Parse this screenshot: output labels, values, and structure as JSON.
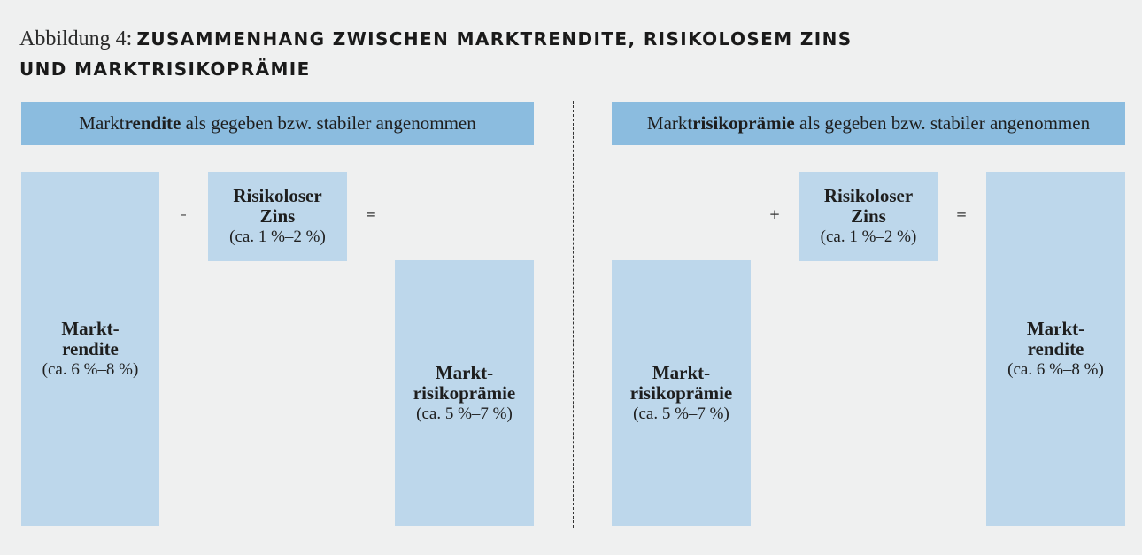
{
  "figure": {
    "prefix": "Abbildung 4:",
    "title_line1": "ZUSAMMENHANG ZWISCHEN MARKTRENDITE, RISIKOLOSEM ZINS",
    "title_line2": "UND MARKTRISIKOPRÄMIE"
  },
  "left": {
    "header_pre": "Markt",
    "header_bold": "rendite",
    "header_post": " als gegeben bzw. stabiler angenommen",
    "box_market_return": {
      "line1": "Markt-",
      "line2": "rendite",
      "range": "(ca. 6 %–8 %)"
    },
    "op_minus": "–",
    "box_riskfree": {
      "line1": "Risikoloser",
      "line2": "Zins",
      "range": "(ca. 1 %–2 %)"
    },
    "op_equals": "=",
    "box_risk_premium": {
      "line1": "Markt-",
      "line2": "risikoprämie",
      "range": "(ca. 5 %–7 %)"
    }
  },
  "right": {
    "header_pre": "Markt",
    "header_bold": "risikoprämie",
    "header_post": " als gegeben bzw. stabiler angenommen",
    "box_risk_premium": {
      "line1": "Markt-",
      "line2": "risikoprämie",
      "range": "(ca. 5 %–7 %)"
    },
    "op_plus": "+",
    "box_riskfree": {
      "line1": "Risikoloser",
      "line2": "Zins",
      "range": "(ca. 1 %–2 %)"
    },
    "op_equals": "=",
    "box_market_return": {
      "line1": "Markt-",
      "line2": "rendite",
      "range": "(ca. 6 %–8 %)"
    }
  },
  "colors": {
    "header_bar": "#8bbcdf",
    "box_fill": "#bdd7eb",
    "background": "#eff0f0"
  }
}
